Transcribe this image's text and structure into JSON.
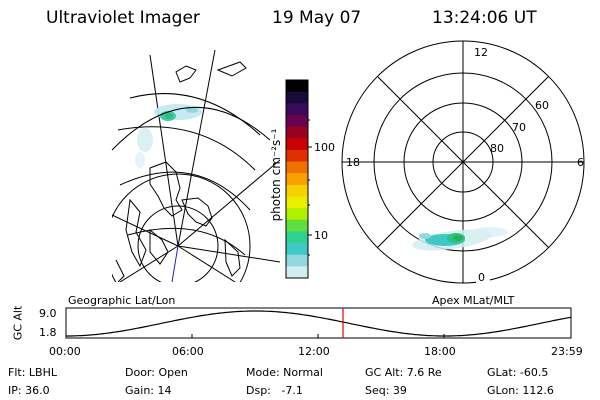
{
  "header": {
    "title": "Ultraviolet Imager",
    "date": "19 May 07",
    "time": "13:24:06 UT"
  },
  "colorbar": {
    "unit_label": "photon cm⁻²s⁻¹",
    "ticks": [
      "100",
      "10"
    ],
    "colors": [
      "#000000",
      "#1a0a3a",
      "#3a0a5a",
      "#6a0050",
      "#9a0020",
      "#c80000",
      "#e03000",
      "#f07000",
      "#f8a000",
      "#f8d000",
      "#e8f000",
      "#b0f000",
      "#60e040",
      "#30d090",
      "#40c8c8",
      "#90d8e0",
      "#d0eef0"
    ]
  },
  "left_panel": {
    "caption": "Geographic Lat/Lon"
  },
  "right_panel": {
    "caption": "Apex MLat/MLT",
    "mlt_labels": {
      "top": "12",
      "left": "18",
      "right": "6",
      "bottom": "0"
    },
    "lat_labels": [
      "60",
      "70",
      "80"
    ]
  },
  "altitude_plot": {
    "ylabel": "GC Alt",
    "y_ticks": [
      "9.0",
      "1.8"
    ],
    "x_ticks": [
      "00:00",
      "06:00",
      "12:00",
      "18:00",
      "23:59"
    ],
    "marker_color": "#e00000"
  },
  "status": {
    "filter": "Flt: LBHL",
    "door": "Door: Open",
    "mode": "Mode: Normal",
    "gc_alt": "GC Alt: 7.6 Re",
    "glat": "GLat: -60.5",
    "ip": "IP: 36.0",
    "gain": "Gain: 14",
    "dsp": "Dsp:   -7.1",
    "seq": "Seq: 39",
    "glon": "GLon: 112.6"
  }
}
